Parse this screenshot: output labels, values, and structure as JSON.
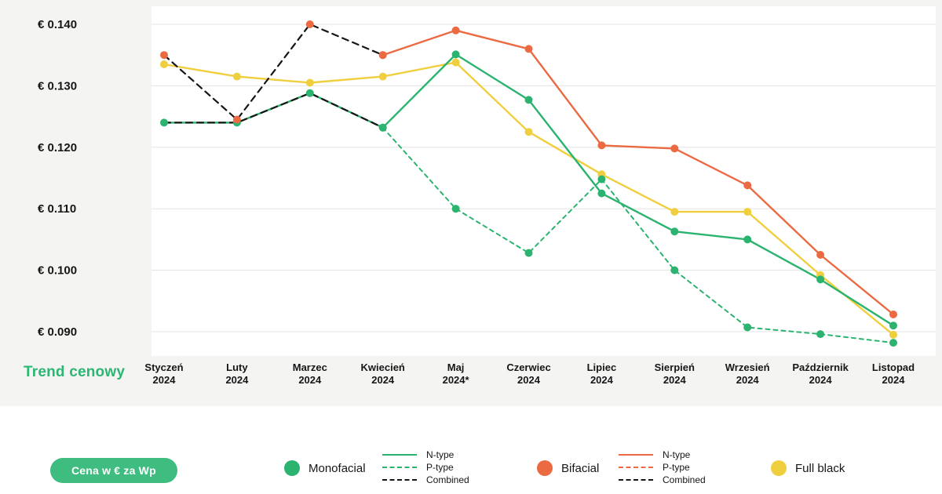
{
  "title": {
    "label": "Trend cenowy"
  },
  "colors": {
    "green": "#2CB370",
    "orange": "#EC6A41",
    "yellow": "#F0CF3F",
    "black": "#161616",
    "grid": "#E3E3E3",
    "bg_card": "#F4F5F3",
    "plot_bg": "#FFFFFF",
    "text": "#161616",
    "pill_bg": "#3FBC7F",
    "pill_text": "#FFFFFF",
    "title_green": "#2BB673"
  },
  "chart_data": {
    "type": "line",
    "title": "Trend cenowy",
    "xlabel": "",
    "ylabel": "",
    "ylim": [
      0.09,
      0.14
    ],
    "grid": "horizontal",
    "categories": [
      [
        "Styczeń",
        "2024"
      ],
      [
        "Luty",
        "2024"
      ],
      [
        "Marzec",
        "2024"
      ],
      [
        "Kwiecień",
        "2024"
      ],
      [
        "Maj",
        "2024*"
      ],
      [
        "Czerwiec",
        "2024"
      ],
      [
        "Lipiec",
        "2024"
      ],
      [
        "Sierpień",
        "2024"
      ],
      [
        "Wrzesień",
        "2024"
      ],
      [
        "Październik",
        "2024"
      ],
      [
        "Listopad",
        "2024"
      ]
    ],
    "y_ticks": [
      {
        "value": 0.14,
        "label": "€ 0.140"
      },
      {
        "value": 0.13,
        "label": "€ 0.130"
      },
      {
        "value": 0.12,
        "label": "€ 0.120"
      },
      {
        "value": 0.11,
        "label": "€ 0.110"
      },
      {
        "value": 0.1,
        "label": "€ 0.100"
      },
      {
        "value": 0.09,
        "label": "€ 0.090"
      }
    ],
    "series": [
      {
        "key": "full-black",
        "name": "Full black",
        "color": "#F0CF3F",
        "dash": null,
        "width": 2.4,
        "marker": "#F0CF3F",
        "values": [
          0.1335,
          0.1315,
          0.1305,
          0.1315,
          0.1338,
          0.1225,
          0.1156,
          0.1095,
          0.1095,
          0.0992,
          0.0895
        ]
      },
      {
        "key": "monofacial-n-type",
        "name": "Monofacial N-type",
        "color": "#2CB370",
        "dash": null,
        "width": 2.4,
        "marker": "#2CB370",
        "values": [
          0.124,
          0.124,
          0.1288,
          0.1232,
          0.1351,
          0.1277,
          0.1125,
          0.1063,
          0.105,
          0.0985,
          0.091
        ]
      },
      {
        "key": "monofacial-p-type",
        "name": "Monofacial P-type",
        "color": "#2CB370",
        "dash": "5 5",
        "width": 2,
        "marker": "#2CB370",
        "values": [
          null,
          null,
          null,
          0.1232,
          0.11,
          0.1028,
          0.1148,
          0.1,
          0.0907,
          0.0896,
          0.0882
        ]
      },
      {
        "key": "bifacial-n-type",
        "name": "Bifacial N-type",
        "color": "#EC6A41",
        "dash": null,
        "width": 2.4,
        "marker": "#EC6A41",
        "values": [
          null,
          null,
          null,
          0.135,
          0.139,
          0.136,
          0.1203,
          0.1198,
          0.1138,
          0.1025,
          0.0928
        ]
      },
      {
        "key": "monofacial-combined",
        "name": "Monofacial Combined",
        "color": "#161616",
        "dash": "8 6",
        "width": 2.2,
        "marker": null,
        "values": [
          0.124,
          0.124,
          0.1288,
          0.1232,
          null,
          null,
          null,
          null,
          null,
          null,
          null
        ]
      },
      {
        "key": "bifacial-combined",
        "name": "Bifacial Combined",
        "color": "#161616",
        "dash": "8 6",
        "width": 2.2,
        "marker": "#EC6A41",
        "values": [
          0.135,
          0.1245,
          0.14,
          0.135,
          null,
          null,
          null,
          null,
          null,
          null,
          null
        ]
      }
    ]
  },
  "legend": {
    "pill": "Cena w € za Wp",
    "groups": [
      {
        "label": "Monofacial",
        "color": "#2CB370",
        "items": [
          {
            "label": "N-type",
            "style": "solid",
            "color": "#2CB370"
          },
          {
            "label": "P-type",
            "style": "dashed",
            "color": "#2CB370"
          },
          {
            "label": "Combined",
            "style": "dashed",
            "color": "#161616"
          }
        ]
      },
      {
        "label": "Bifacial",
        "color": "#EC6A41",
        "items": [
          {
            "label": "N-type",
            "style": "solid",
            "color": "#EC6A41"
          },
          {
            "label": "P-type",
            "style": "dashed",
            "color": "#EC6A41"
          },
          {
            "label": "Combined",
            "style": "dashed",
            "color": "#161616"
          }
        ]
      },
      {
        "label": "Full black",
        "color": "#F0CF3F",
        "items": []
      }
    ]
  }
}
